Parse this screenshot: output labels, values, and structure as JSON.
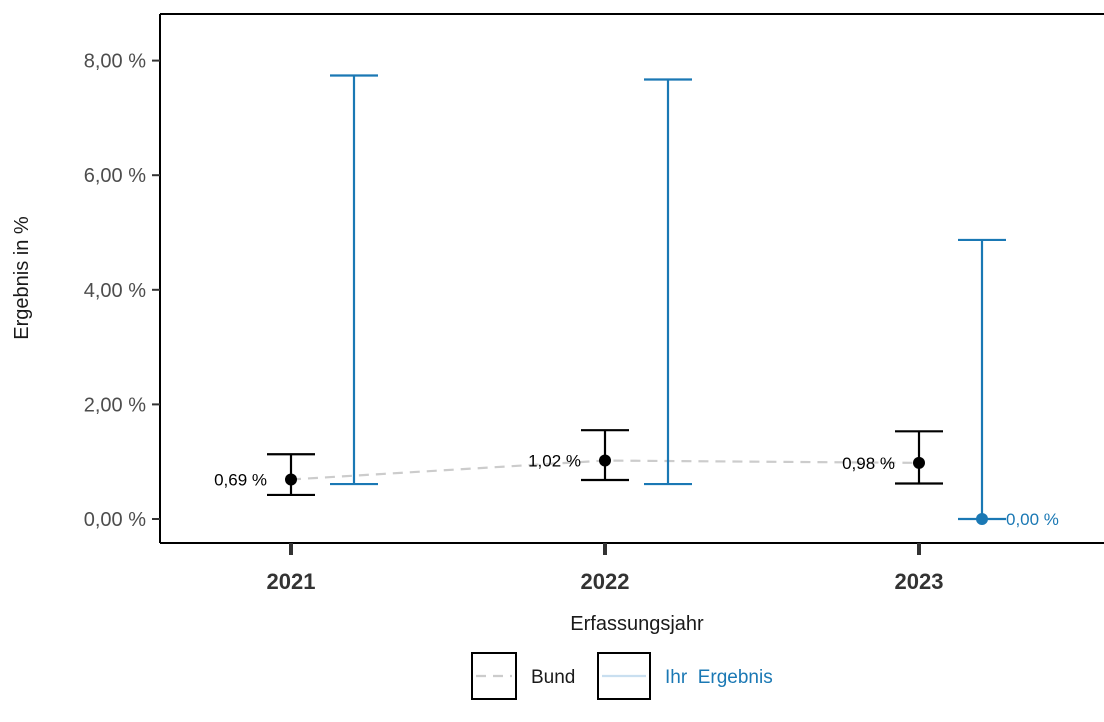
{
  "chart_data": {
    "type": "errorbar",
    "xlabel": "Erfassungsjahr",
    "ylabel": "Ergebnis in %",
    "categories": [
      "2021",
      "2022",
      "2023"
    ],
    "ylim": [
      -0.4,
      8.2
    ],
    "yticks": [
      0,
      2,
      4,
      6,
      8
    ],
    "ytick_labels": [
      "0,00 %",
      "2,00 %",
      "4,00 %",
      "6,00 %",
      "8,00 %"
    ],
    "grid": false,
    "legend_position": "bottom",
    "series": [
      {
        "name": "Bund",
        "color": "#000000",
        "line_color": "#cccccc",
        "line_style": "dashed",
        "points": [
          {
            "x": "2021",
            "value": 0.69,
            "lower": 0.42,
            "upper": 1.13,
            "label": "0,69 %"
          },
          {
            "x": "2022",
            "value": 1.02,
            "lower": 0.68,
            "upper": 1.55,
            "label": "1,02 %"
          },
          {
            "x": "2023",
            "value": 0.98,
            "lower": 0.62,
            "upper": 1.53,
            "label": "0,98 %"
          }
        ]
      },
      {
        "name": "Ihr  Ergebnis",
        "color": "#1a78b4",
        "points": [
          {
            "x": "2021",
            "value": null,
            "lower": 0.61,
            "upper": 7.74,
            "label": ""
          },
          {
            "x": "2022",
            "value": null,
            "lower": 0.61,
            "upper": 7.67,
            "label": ""
          },
          {
            "x": "2023",
            "value": 0.0,
            "lower": 0.0,
            "upper": 4.87,
            "label": "0,00 %"
          }
        ]
      }
    ]
  }
}
